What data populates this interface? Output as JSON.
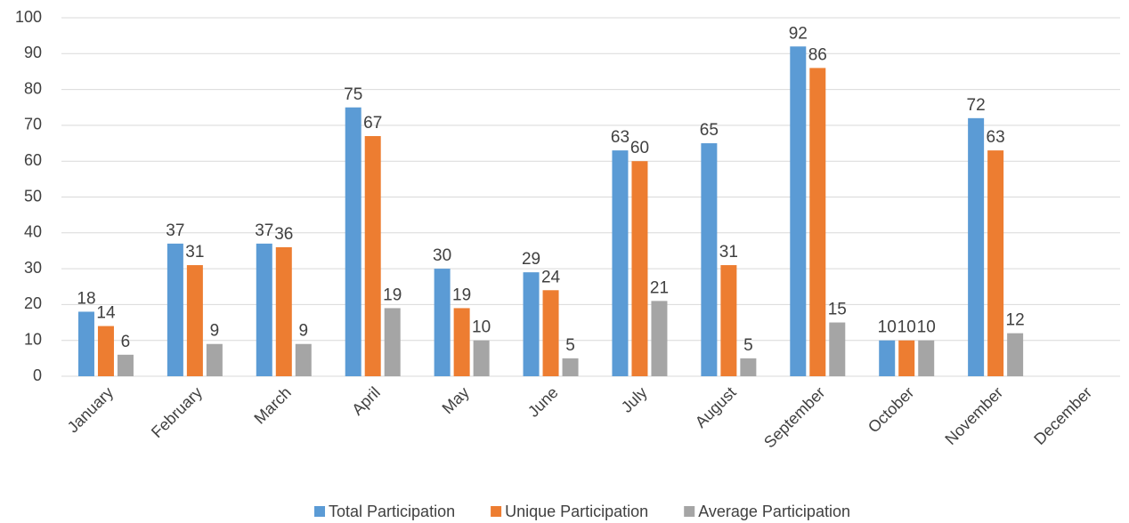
{
  "chart_data": {
    "type": "bar",
    "categories": [
      "January",
      "February",
      "March",
      "April",
      "May",
      "June",
      "July",
      "August",
      "September",
      "October",
      "November",
      "December"
    ],
    "series": [
      {
        "name": "Total Participation",
        "color": "#5b9bd5",
        "values": [
          18,
          37,
          37,
          75,
          30,
          29,
          63,
          65,
          92,
          10,
          72,
          null
        ]
      },
      {
        "name": "Unique Participation",
        "color": "#ed7d31",
        "values": [
          14,
          31,
          36,
          67,
          19,
          24,
          60,
          31,
          86,
          10,
          63,
          null
        ]
      },
      {
        "name": "Average Participation",
        "color": "#a5a5a5",
        "values": [
          6,
          9,
          9,
          19,
          10,
          5,
          21,
          5,
          15,
          10,
          12,
          null
        ]
      }
    ],
    "ylim": [
      0,
      100
    ],
    "yticks": [
      0,
      10,
      20,
      30,
      40,
      50,
      60,
      70,
      80,
      90,
      100
    ],
    "grid": true,
    "legend": "bottom"
  }
}
